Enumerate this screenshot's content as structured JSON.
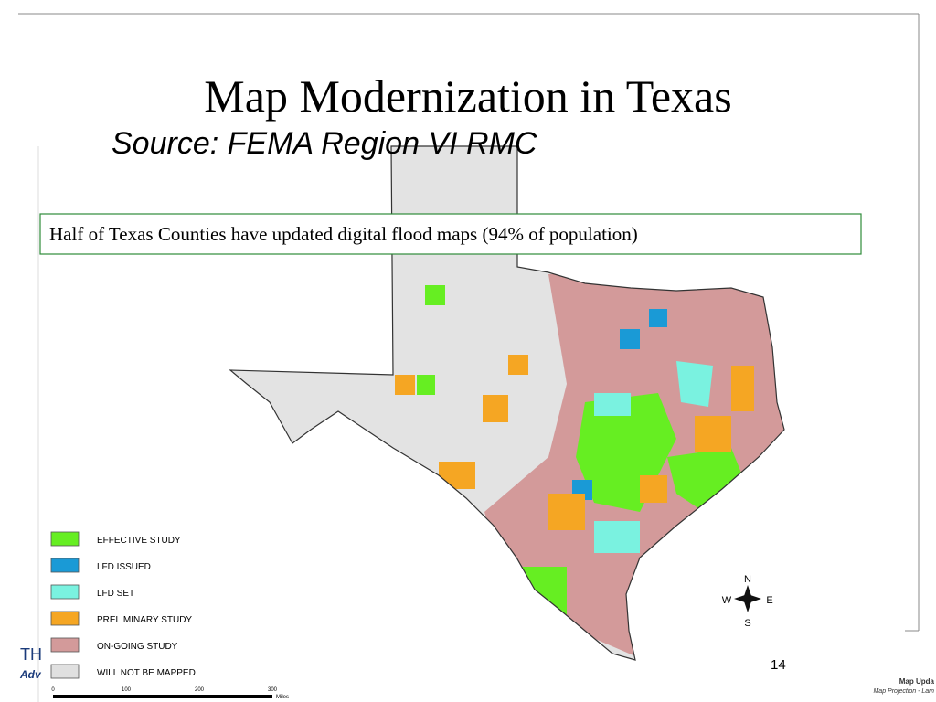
{
  "title": "Map Modernization in Texas",
  "subtitle": "Source: FEMA Region VI RMC",
  "callout": "Half of Texas Counties have updated digital flood maps (94% of population)",
  "legend": [
    {
      "label": "EFFECTIVE STUDY",
      "color": "#66ee22"
    },
    {
      "label": "LFD ISSUED",
      "color": "#1a9ad6"
    },
    {
      "label": "LFD SET",
      "color": "#7af2e0"
    },
    {
      "label": "PRELIMINARY STUDY",
      "color": "#f5a623"
    },
    {
      "label": "ON-GOING STUDY",
      "color": "#d39a9a"
    },
    {
      "label": "WILL NOT BE MAPPED",
      "color": "#e0e0e0"
    }
  ],
  "compass": {
    "n": "N",
    "w": "W",
    "e": "E",
    "s": "S"
  },
  "scale_bar": {
    "labels": [
      "0",
      "100",
      "200",
      "300"
    ],
    "unit": "Miles"
  },
  "footer": {
    "logo_line1": "TH",
    "logo_line2": "Adv",
    "page_number": "14",
    "map_title": "Map Upda",
    "map_projection": "Map Projection - Lam"
  }
}
